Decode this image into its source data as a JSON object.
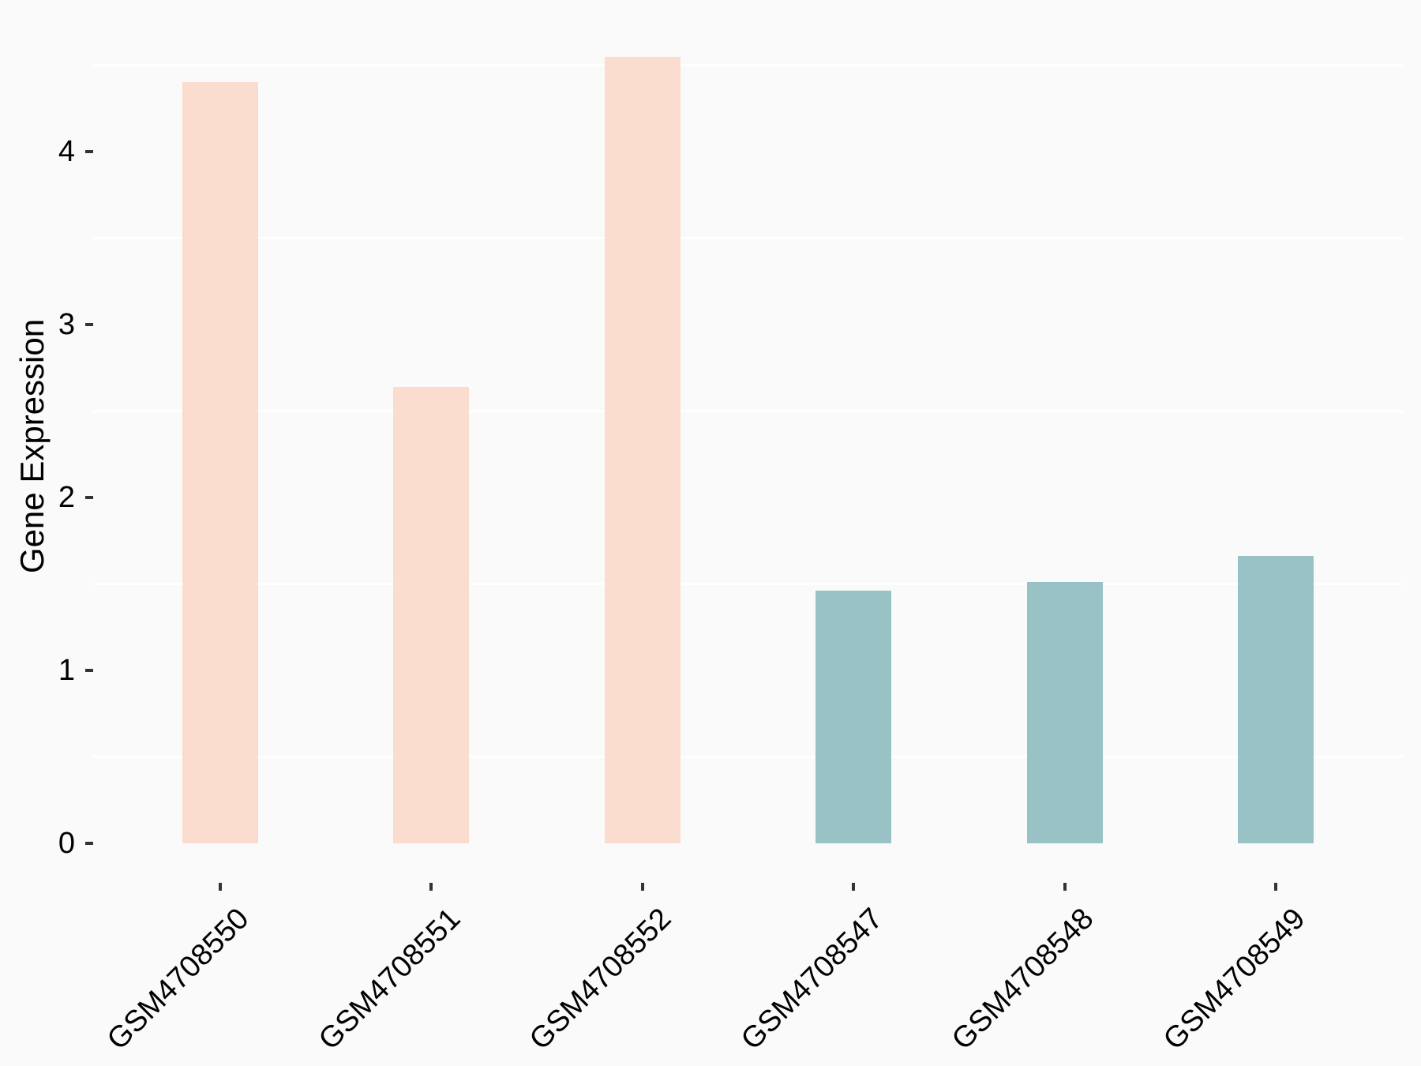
{
  "chart_data": {
    "type": "bar",
    "title": "",
    "xlabel": "",
    "ylabel": "Gene Expression",
    "categories": [
      "GSM4708550",
      "GSM4708551",
      "GSM4708552",
      "GSM4708547",
      "GSM4708548",
      "GSM4708549"
    ],
    "values": [
      4.4,
      2.64,
      4.55,
      1.46,
      1.51,
      1.66
    ],
    "bar_colors": [
      "#FBDDD0",
      "#FBDDD0",
      "#FBDDD0",
      "#99C2C6",
      "#99C2C6",
      "#99C2C6"
    ],
    "groups": [
      "group1",
      "group1",
      "group1",
      "group2",
      "group2",
      "group2"
    ],
    "group_colors": {
      "group1": "#FBDDD0",
      "group2": "#99C2C6"
    },
    "y_ticks": [
      0,
      1,
      2,
      3,
      4
    ],
    "y_minor_gridlines": [
      0.5,
      1.5,
      2.5,
      3.5,
      4.5
    ],
    "ylim": [
      0,
      4.78
    ],
    "x_label_rotation_deg": 45,
    "legend": "none",
    "grid": "minor gridlines only, white on light gray panel",
    "colors": {
      "background": "#FAFAFA",
      "gridline": "#FFFFFF",
      "tick_mark": "#333333",
      "text": "#000000"
    }
  }
}
